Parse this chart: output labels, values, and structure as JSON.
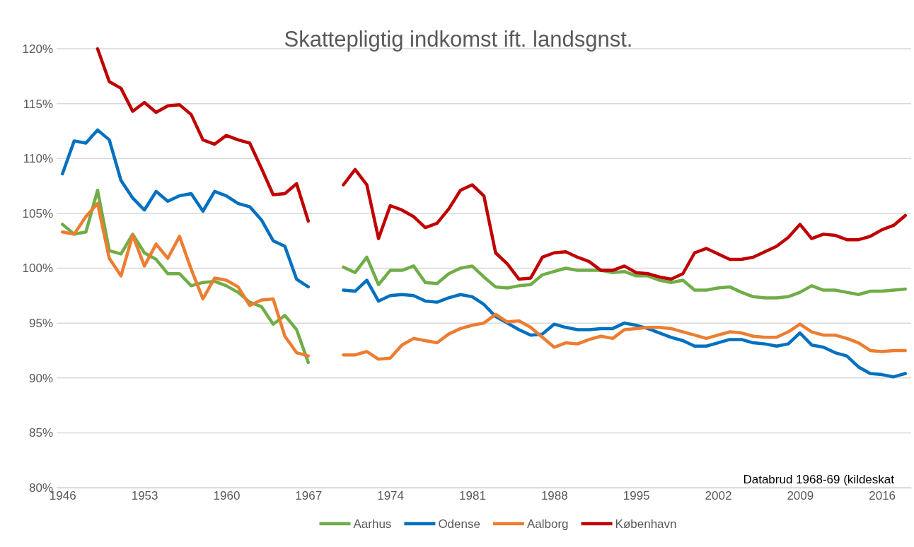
{
  "chart_data": {
    "type": "line",
    "title": "Skattepligtig indkomst ift. landsgnst.",
    "x": [
      1946,
      1947,
      1948,
      1949,
      1950,
      1951,
      1952,
      1953,
      1954,
      1955,
      1956,
      1957,
      1958,
      1959,
      1960,
      1961,
      1962,
      1963,
      1964,
      1965,
      1966,
      1967,
      1968,
      1969,
      1970,
      1971,
      1972,
      1973,
      1974,
      1975,
      1976,
      1977,
      1978,
      1979,
      1980,
      1981,
      1982,
      1983,
      1984,
      1985,
      1986,
      1987,
      1988,
      1989,
      1990,
      1991,
      1992,
      1993,
      1994,
      1995,
      1996,
      1997,
      1998,
      1999,
      2000,
      2001,
      2002,
      2003,
      2004,
      2005,
      2006,
      2007,
      2008,
      2009,
      2010,
      2011,
      2012,
      2013,
      2014,
      2015,
      2016,
      2017,
      2018
    ],
    "series": [
      {
        "name": "Aarhus",
        "color": "#70ad47",
        "values": [
          104.0,
          103.1,
          103.3,
          107.1,
          101.6,
          101.3,
          103.1,
          101.4,
          100.8,
          99.5,
          99.5,
          98.4,
          98.7,
          98.8,
          98.4,
          97.8,
          96.9,
          96.5,
          94.9,
          95.7,
          94.4,
          91.4,
          null,
          null,
          100.1,
          99.6,
          101.0,
          98.5,
          99.8,
          99.8,
          100.2,
          98.7,
          98.6,
          99.5,
          100.0,
          100.2,
          99.2,
          98.3,
          98.2,
          98.4,
          98.5,
          99.4,
          99.7,
          100.0,
          99.8,
          99.8,
          99.8,
          99.6,
          99.7,
          99.3,
          99.3,
          98.9,
          98.7,
          98.9,
          98.0,
          98.0,
          98.2,
          98.3,
          97.8,
          97.4,
          97.3,
          97.3,
          97.4,
          97.8,
          98.4,
          98.0,
          98.0,
          97.8,
          97.6,
          97.9,
          97.9,
          98.0,
          98.1
        ]
      },
      {
        "name": "Odense",
        "color": "#0070c0",
        "values": [
          108.6,
          111.6,
          111.4,
          112.6,
          111.7,
          108.0,
          106.4,
          105.3,
          107.0,
          106.1,
          106.6,
          106.8,
          105.2,
          107.0,
          106.6,
          105.9,
          105.6,
          104.4,
          102.5,
          102.0,
          99.0,
          98.3,
          null,
          null,
          98.0,
          97.9,
          98.9,
          97.0,
          97.5,
          97.6,
          97.5,
          97.0,
          96.9,
          97.3,
          97.6,
          97.4,
          96.7,
          95.6,
          95.0,
          94.4,
          93.9,
          94.0,
          94.9,
          94.6,
          94.4,
          94.4,
          94.5,
          94.5,
          95.0,
          94.8,
          94.5,
          94.1,
          93.7,
          93.4,
          92.9,
          92.9,
          93.2,
          93.5,
          93.5,
          93.2,
          93.1,
          92.9,
          93.1,
          94.1,
          93.0,
          92.8,
          92.3,
          92.0,
          91.0,
          90.4,
          90.3,
          90.1,
          90.4
        ]
      },
      {
        "name": "Aalborg",
        "color": "#ed7d31",
        "values": [
          103.3,
          103.1,
          104.7,
          105.9,
          100.9,
          99.3,
          103.0,
          100.2,
          102.2,
          100.9,
          102.9,
          99.9,
          97.2,
          99.1,
          98.9,
          98.3,
          96.6,
          97.1,
          97.2,
          93.8,
          92.3,
          92.0,
          null,
          null,
          92.1,
          92.1,
          92.4,
          91.7,
          91.8,
          93.0,
          93.6,
          93.4,
          93.2,
          94.0,
          94.5,
          94.8,
          95.0,
          95.8,
          95.1,
          95.2,
          94.6,
          93.7,
          92.8,
          93.2,
          93.1,
          93.5,
          93.8,
          93.6,
          94.4,
          94.5,
          94.6,
          94.6,
          94.5,
          94.2,
          93.9,
          93.6,
          93.9,
          94.2,
          94.1,
          93.8,
          93.7,
          93.7,
          94.2,
          94.9,
          94.2,
          93.9,
          93.9,
          93.6,
          93.2,
          92.5,
          92.4,
          92.5,
          92.5
        ]
      },
      {
        "name": "København",
        "color": "#c00000",
        "values": [
          null,
          null,
          null,
          120,
          117.0,
          116.4,
          114.3,
          115.1,
          114.2,
          114.8,
          114.9,
          114.0,
          111.7,
          111.3,
          112.1,
          111.7,
          111.4,
          109.1,
          106.7,
          106.8,
          107.7,
          104.3,
          null,
          null,
          107.6,
          109.0,
          107.6,
          102.7,
          105.7,
          105.3,
          104.7,
          103.7,
          104.1,
          105.4,
          107.1,
          107.6,
          106.6,
          101.4,
          100.4,
          99.0,
          99.1,
          101.0,
          101.4,
          101.5,
          101.0,
          100.6,
          99.8,
          99.8,
          100.2,
          99.6,
          99.5,
          99.2,
          99.0,
          99.5,
          101.4,
          101.8,
          101.3,
          100.8,
          100.8,
          101.0,
          101.5,
          102.0,
          102.8,
          104.0,
          102.7,
          103.1,
          103.0,
          102.6,
          102.6,
          102.9,
          103.5,
          103.9,
          104.8
        ]
      }
    ],
    "xlim": [
      1945.5,
      2018.5
    ],
    "xticks": [
      1946,
      1953,
      1960,
      1967,
      1974,
      1981,
      1988,
      1995,
      2002,
      2009,
      2016
    ],
    "ylim": [
      80,
      120
    ],
    "yticks": [
      {
        "value": 80,
        "label": "80%"
      },
      {
        "value": 85,
        "label": "85%"
      },
      {
        "value": 90,
        "label": "90%"
      },
      {
        "value": 95,
        "label": "95%"
      },
      {
        "value": 100,
        "label": "100%"
      },
      {
        "value": 105,
        "label": "105%"
      },
      {
        "value": 110,
        "label": "110%"
      },
      {
        "value": 115,
        "label": "115%"
      },
      {
        "value": 120,
        "label": "120%"
      }
    ],
    "grid": "y",
    "legend": "bottom",
    "line_style": "solid",
    "marker": "none",
    "annotations": [
      "Databrud 1968-69 (kildeskat"
    ]
  }
}
